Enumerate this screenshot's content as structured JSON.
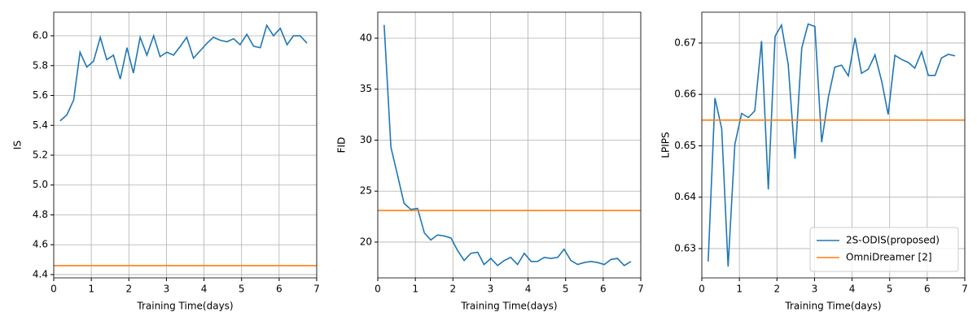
{
  "chart_data": [
    {
      "type": "line",
      "xlabel": "Training Time(days)",
      "ylabel": "IS",
      "x": [
        0.17,
        0.35,
        0.53,
        0.7,
        0.88,
        1.06,
        1.24,
        1.41,
        1.59,
        1.77,
        1.95,
        2.12,
        2.3,
        2.48,
        2.66,
        2.83,
        3.01,
        3.19,
        3.37,
        3.54,
        3.72,
        3.9,
        4.08,
        4.25,
        4.43,
        4.61,
        4.79,
        4.96,
        5.14,
        5.32,
        5.5,
        5.67,
        5.85,
        6.03,
        6.21,
        6.38,
        6.56,
        6.74
      ],
      "series": [
        {
          "color": "#1f77b4",
          "values": [
            5.43,
            5.47,
            5.57,
            5.89,
            5.79,
            5.83,
            5.99,
            5.84,
            5.87,
            5.71,
            5.92,
            5.75,
            5.99,
            5.87,
            6.0,
            5.86,
            5.89,
            5.87,
            5.93,
            5.99,
            5.85,
            5.9,
            5.95,
            5.99,
            5.97,
            5.96,
            5.98,
            5.94,
            6.01,
            5.93,
            5.92,
            6.07,
            6.0,
            6.05,
            5.94,
            6.0,
            6.0,
            5.95
          ]
        },
        {
          "color": "#ff7f0e",
          "hline": 4.46
        }
      ],
      "xlim": [
        0,
        7
      ],
      "xticks": [
        0,
        1,
        2,
        3,
        4,
        5,
        6,
        7
      ],
      "ylim": [
        4.378,
        6.158
      ],
      "yticks": [
        4.4,
        4.6,
        4.8,
        {
          "value": 5,
          "label": "5.0"
        },
        5.2,
        5.4,
        5.6,
        5.8,
        {
          "value": 6,
          "label": "6.0"
        }
      ],
      "grid": true
    },
    {
      "type": "line",
      "xlabel": "Training Time(days)",
      "ylabel": "FID",
      "x": [
        0.17,
        0.35,
        0.53,
        0.7,
        0.88,
        1.06,
        1.24,
        1.41,
        1.59,
        1.77,
        1.95,
        2.12,
        2.3,
        2.48,
        2.66,
        2.83,
        3.01,
        3.19,
        3.37,
        3.54,
        3.72,
        3.9,
        4.08,
        4.25,
        4.43,
        4.61,
        4.79,
        4.96,
        5.14,
        5.32,
        5.5,
        5.67,
        5.85,
        6.03,
        6.21,
        6.38,
        6.56,
        6.74
      ],
      "series": [
        {
          "color": "#1f77b4",
          "values": [
            41.3,
            29.3,
            26.5,
            23.8,
            23.2,
            23.3,
            20.9,
            20.2,
            20.7,
            20.6,
            20.4,
            19.2,
            18.2,
            18.9,
            19.0,
            17.8,
            18.4,
            17.7,
            18.2,
            18.5,
            17.8,
            18.9,
            18.1,
            18.1,
            18.5,
            18.4,
            18.5,
            19.3,
            18.2,
            17.8,
            18.0,
            18.1,
            18.0,
            17.8,
            18.3,
            18.4,
            17.7,
            18.1
          ]
        },
        {
          "color": "#ff7f0e",
          "hline": 23.1
        }
      ],
      "xlim": [
        0,
        7
      ],
      "xticks": [
        0,
        1,
        2,
        3,
        4,
        5,
        6,
        7
      ],
      "ylim": [
        16.49,
        42.55
      ],
      "yticks": [
        20,
        25,
        30,
        35,
        40
      ],
      "grid": true
    },
    {
      "type": "line",
      "xlabel": "Training Time(days)",
      "ylabel": "LPIPS",
      "x": [
        0.17,
        0.35,
        0.53,
        0.7,
        0.88,
        1.06,
        1.24,
        1.41,
        1.59,
        1.77,
        1.95,
        2.12,
        2.3,
        2.48,
        2.66,
        2.83,
        3.01,
        3.19,
        3.37,
        3.54,
        3.72,
        3.9,
        4.08,
        4.25,
        4.43,
        4.61,
        4.79,
        4.96,
        5.14,
        5.32,
        5.5,
        5.67,
        5.85,
        6.03,
        6.21,
        6.38,
        6.56,
        6.74
      ],
      "series": [
        {
          "name": "2S-ODIS(proposed)",
          "color": "#1f77b4",
          "values": [
            0.6275,
            0.6593,
            0.6533,
            0.6265,
            0.6503,
            0.6563,
            0.6555,
            0.6568,
            0.6704,
            0.6415,
            0.6713,
            0.6735,
            0.6658,
            0.6475,
            0.669,
            0.6737,
            0.6732,
            0.6507,
            0.6595,
            0.6653,
            0.6657,
            0.6636,
            0.671,
            0.6641,
            0.6649,
            0.6677,
            0.6625,
            0.6561,
            0.6676,
            0.6668,
            0.6662,
            0.6651,
            0.6683,
            0.6637,
            0.6637,
            0.6671,
            0.6678,
            0.6675
          ]
        },
        {
          "name": "OmniDreamer [2]",
          "color": "#ff7f0e",
          "hline": 0.655
        }
      ],
      "xlim": [
        0,
        7
      ],
      "xticks": [
        0,
        1,
        2,
        3,
        4,
        5,
        6,
        7
      ],
      "ylim": [
        0.6243,
        0.676
      ],
      "yticks": [
        0.63,
        0.64,
        0.65,
        0.66,
        0.67
      ],
      "grid": true,
      "legend": "lower right"
    }
  ]
}
